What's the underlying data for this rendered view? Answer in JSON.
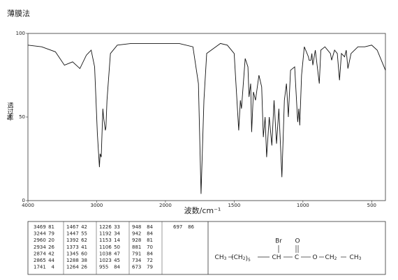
{
  "chart_data": {
    "type": "line",
    "title": "薄膜法",
    "ylabel": "透过率",
    "yunit": "%",
    "xlabel": "波数/cm⁻¹",
    "xlim": [
      4000,
      400
    ],
    "xticks": [
      4000,
      3000,
      2000,
      1500,
      1000,
      500
    ],
    "ylim": [
      0,
      100
    ],
    "yticks": [
      0,
      50,
      100
    ],
    "series": [
      {
        "color": "#111",
        "x": [
          4000,
          3800,
          3600,
          3469,
          3350,
          3244,
          3150,
          3080,
          3030,
          2990,
          2960,
          2950,
          2934,
          2910,
          2900,
          2874,
          2865,
          2850,
          2800,
          2700,
          2500,
          2000,
          1900,
          1800,
          1760,
          1741,
          1720,
          1700,
          1600,
          1550,
          1500,
          1467,
          1455,
          1447,
          1420,
          1400,
          1392,
          1380,
          1373,
          1360,
          1345,
          1320,
          1300,
          1288,
          1275,
          1264,
          1245,
          1226,
          1210,
          1192,
          1175,
          1153,
          1135,
          1120,
          1106,
          1090,
          1060,
          1038,
          1030,
          1023,
          1010,
          990,
          960,
          955,
          948,
          942,
          935,
          928,
          910,
          881,
          870,
          840,
          800,
          791,
          770,
          750,
          734,
          720,
          697,
          685,
          673,
          650,
          600,
          550,
          500,
          460,
          420,
          400
        ],
        "values": [
          93,
          92,
          89,
          81,
          83,
          79,
          87,
          90,
          80,
          40,
          20,
          28,
          26,
          55,
          50,
          42,
          44,
          60,
          88,
          93,
          94,
          94,
          94,
          92,
          70,
          4,
          60,
          88,
          94,
          93,
          88,
          42,
          60,
          55,
          85,
          80,
          62,
          70,
          41,
          65,
          60,
          75,
          68,
          38,
          50,
          26,
          50,
          33,
          60,
          34,
          55,
          14,
          60,
          70,
          50,
          78,
          80,
          47,
          55,
          45,
          75,
          92,
          86,
          84,
          84,
          84,
          88,
          81,
          90,
          70,
          90,
          92,
          88,
          84,
          90,
          88,
          72,
          88,
          86,
          90,
          79,
          88,
          92,
          92,
          93,
          90,
          82,
          78
        ]
      }
    ],
    "peak_table": [
      [
        [
          3469,
          81
        ],
        [
          3244,
          79
        ],
        [
          2960,
          20
        ],
        [
          2934,
          26
        ],
        [
          2874,
          42
        ],
        [
          2865,
          44
        ],
        [
          1741,
          4
        ]
      ],
      [
        [
          1467,
          42
        ],
        [
          1447,
          55
        ],
        [
          1392,
          62
        ],
        [
          1373,
          41
        ],
        [
          1345,
          60
        ],
        [
          1288,
          38
        ],
        [
          1264,
          26
        ]
      ],
      [
        [
          1226,
          33
        ],
        [
          1192,
          34
        ],
        [
          1153,
          14
        ],
        [
          1106,
          50
        ],
        [
          1038,
          47
        ],
        [
          1023,
          45
        ],
        [
          955,
          84
        ]
      ],
      [
        [
          948,
          84
        ],
        [
          942,
          84
        ],
        [
          928,
          81
        ],
        [
          881,
          70
        ],
        [
          791,
          84
        ],
        [
          734,
          72
        ],
        [
          673,
          79
        ]
      ],
      [
        [
          697,
          86
        ]
      ]
    ],
    "structure": {
      "top": [
        "Br",
        "O"
      ],
      "chain": [
        "CH3",
        "(CH2)5",
        "CH",
        "C",
        "O",
        "CH2",
        "CH3"
      ]
    }
  }
}
